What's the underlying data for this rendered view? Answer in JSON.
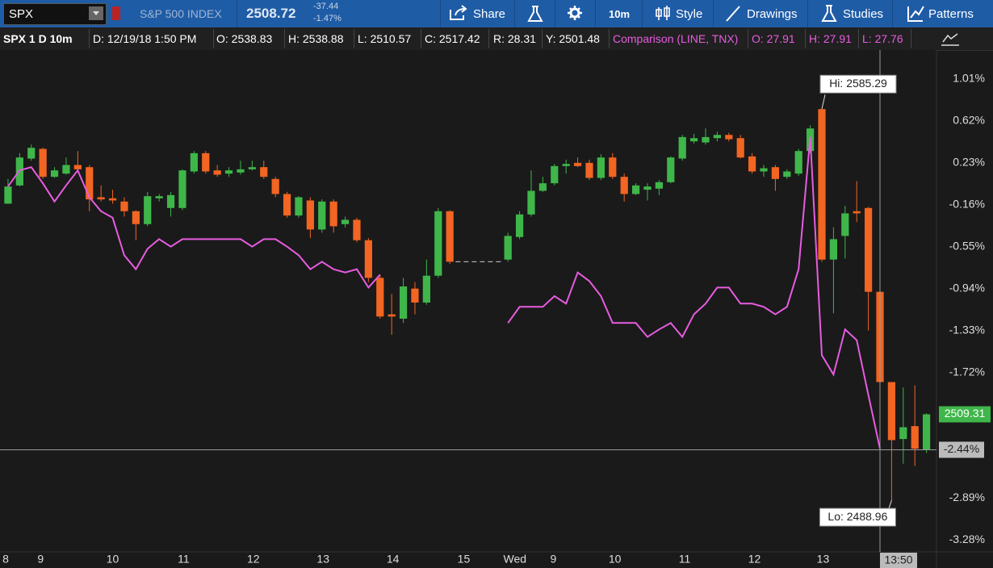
{
  "toolbar": {
    "symbol": "SPX",
    "description": "S&P 500 INDEX",
    "last": "2508.72",
    "change": "-37.44",
    "change_pct": "-1.47%",
    "buttons": [
      "Share",
      "10m",
      "Style",
      "Drawings",
      "Studies",
      "Patterns"
    ]
  },
  "info_bar": {
    "title": "SPX 1 D 10m",
    "items": [
      "D: 12/19/18 1:50 PM",
      "O: 2538.83",
      "H: 2538.88",
      "L: 2510.57",
      "C: 2517.42",
      "R: 28.31",
      "Y: 2501.48"
    ],
    "comparison_items": [
      "O: 27.91",
      "H: 27.91",
      "L: 27.76"
    ]
  },
  "chart_data": {
    "type": "candlestick",
    "up_color": "#3fb64a",
    "down_color": "#f26522",
    "open": [
      -0.15,
      0.02,
      0.27,
      0.36,
      0.1,
      0.13,
      0.21,
      0.19,
      -0.09,
      -0.1,
      -0.13,
      -0.22,
      -0.34,
      -0.1,
      -0.19,
      -0.19,
      0.15,
      0.32,
      0.16,
      0.13,
      0.14,
      0.17,
      0.19,
      0.08,
      -0.06,
      -0.26,
      -0.12,
      -0.39,
      -0.13,
      -0.34,
      -0.3,
      -0.49,
      -0.84,
      -1.18,
      -1.22,
      -0.94,
      -1.07,
      -0.82,
      -0.22,
      null,
      null,
      null,
      null,
      -0.67,
      -0.46,
      -0.25,
      -0.03,
      0.04,
      0.2,
      0.23,
      0.23,
      0.09,
      0.28,
      0.1,
      -0.06,
      -0.02,
      -0.01,
      0.05,
      0.27,
      0.43,
      0.42,
      0.46,
      0.49,
      0.46,
      0.29,
      0.15,
      0.19,
      0.1,
      0.13,
      0.34,
      0.73,
      -0.67,
      -0.45,
      -0.22,
      -0.19,
      -0.97,
      -1.81,
      -2.34,
      -2.22,
      -2.44
    ],
    "high": [
      0.08,
      0.32,
      0.4,
      0.37,
      0.19,
      0.28,
      0.34,
      0.21,
      0.02,
      -0.02,
      -0.09,
      -0.21,
      -0.04,
      -0.06,
      -0.04,
      0.17,
      0.34,
      0.34,
      0.21,
      0.19,
      0.25,
      0.25,
      0.25,
      0.1,
      -0.04,
      -0.08,
      -0.09,
      -0.11,
      -0.11,
      -0.27,
      -0.28,
      -0.47,
      -0.81,
      -0.99,
      -0.84,
      -0.88,
      -0.67,
      -0.19,
      -0.21,
      null,
      null,
      null,
      null,
      -0.42,
      -0.22,
      0.16,
      0.1,
      0.22,
      0.26,
      0.28,
      0.26,
      0.31,
      0.32,
      0.13,
      0.04,
      0.04,
      0.07,
      0.29,
      0.49,
      0.5,
      0.55,
      0.52,
      0.51,
      0.49,
      0.32,
      0.21,
      0.21,
      0.17,
      0.36,
      0.58,
      0.73,
      -0.37,
      -0.17,
      0.06,
      -0.18,
      -0.96,
      -1.81,
      -1.86,
      -1.84,
      -2.1
    ],
    "low": [
      -0.15,
      0.01,
      0.25,
      0.08,
      0.09,
      0.12,
      0.16,
      -0.22,
      -0.13,
      -0.15,
      -0.27,
      -0.49,
      -0.36,
      -0.13,
      -0.27,
      -0.21,
      0.13,
      0.13,
      0.1,
      0.1,
      0.12,
      0.16,
      0.08,
      -0.09,
      -0.28,
      -0.28,
      -0.47,
      -0.42,
      -0.42,
      -0.37,
      -0.51,
      -0.88,
      -1.22,
      -1.37,
      -1.26,
      -1.18,
      -1.09,
      -0.84,
      -0.71,
      null,
      null,
      null,
      null,
      -0.69,
      -0.48,
      -0.27,
      -0.04,
      0.02,
      0.13,
      0.19,
      0.07,
      0.07,
      0.08,
      -0.13,
      -0.07,
      -0.12,
      -0.07,
      0.04,
      0.25,
      0.41,
      0.4,
      0.43,
      0.43,
      0.27,
      0.13,
      0.1,
      -0.03,
      0.08,
      0.11,
      0.32,
      -0.69,
      -1.17,
      -0.66,
      -0.32,
      -1.33,
      -2.43,
      -2.91,
      -2.57,
      -2.59,
      -2.47
    ],
    "close": [
      0.01,
      0.28,
      0.37,
      0.1,
      0.16,
      0.21,
      0.17,
      -0.11,
      -0.11,
      -0.12,
      -0.22,
      -0.34,
      -0.08,
      -0.08,
      -0.07,
      0.16,
      0.32,
      0.15,
      0.12,
      0.16,
      0.17,
      0.19,
      0.1,
      -0.06,
      -0.26,
      -0.09,
      -0.39,
      -0.13,
      -0.36,
      -0.3,
      -0.49,
      -0.84,
      -1.2,
      -1.2,
      -0.92,
      -1.07,
      -0.82,
      -0.22,
      -0.69,
      null,
      null,
      null,
      null,
      -0.45,
      -0.25,
      -0.03,
      0.04,
      0.2,
      0.22,
      0.2,
      0.09,
      0.28,
      0.1,
      -0.06,
      0.02,
      0.01,
      0.05,
      0.28,
      0.47,
      0.46,
      0.47,
      0.49,
      0.45,
      0.28,
      0.15,
      0.18,
      0.08,
      0.15,
      0.34,
      0.55,
      -0.67,
      -0.48,
      -0.24,
      -0.24,
      -0.97,
      -1.81,
      -2.35,
      -2.23,
      -2.43,
      -2.11
    ],
    "series": [
      {
        "name": "Comparison (LINE, TNX)",
        "color": "#e75ce0",
        "values": [
          0.01,
          0.16,
          0.19,
          0.04,
          -0.13,
          0.02,
          0.16,
          -0.09,
          -0.22,
          -0.28,
          -0.63,
          -0.76,
          -0.57,
          -0.48,
          -0.55,
          -0.48,
          -0.48,
          -0.48,
          -0.48,
          -0.48,
          -0.48,
          -0.55,
          -0.48,
          -0.48,
          -0.55,
          -0.63,
          -0.76,
          -0.69,
          -0.76,
          -0.79,
          -0.76,
          -0.93,
          -0.81,
          null,
          null,
          null,
          null,
          null,
          null,
          null,
          null,
          null,
          null,
          -1.26,
          -1.11,
          -1.11,
          -1.11,
          -1.01,
          -1.08,
          -0.79,
          -0.87,
          -1.01,
          -1.26,
          -1.26,
          -1.26,
          -1.39,
          -1.32,
          -1.26,
          -1.39,
          -1.18,
          -1.08,
          -0.93,
          -0.93,
          -1.08,
          -1.08,
          -1.11,
          -1.18,
          -1.11,
          -0.76,
          0.47,
          -1.56,
          -1.74,
          -1.32,
          -1.42,
          -1.93,
          -2.43,
          null,
          null,
          null,
          null
        ]
      }
    ],
    "ylim": [
      -3.39,
      1.28
    ],
    "yticks": [
      {
        "value": 1.01,
        "label": "1.01%"
      },
      {
        "value": 0.62,
        "label": "0.62%"
      },
      {
        "value": 0.23,
        "label": "0.23%"
      },
      {
        "value": -0.16,
        "label": "-0.16%"
      },
      {
        "value": -0.55,
        "label": "-0.55%"
      },
      {
        "value": -0.94,
        "label": "-0.94%"
      },
      {
        "value": -1.33,
        "label": "-1.33%"
      },
      {
        "value": -1.72,
        "label": "-1.72%"
      },
      {
        "value": -2.89,
        "label": "-2.89%"
      },
      {
        "value": -3.28,
        "label": "-3.28%"
      }
    ],
    "xlim": [
      -0.69,
      79.86
    ],
    "xticks": [
      {
        "value": -0.2,
        "label": "8"
      },
      {
        "value": 2.8,
        "label": "9"
      },
      {
        "value": 9,
        "label": "10"
      },
      {
        "value": 15.1,
        "label": "11"
      },
      {
        "value": 21.1,
        "label": "12"
      },
      {
        "value": 27.1,
        "label": "13"
      },
      {
        "value": 33.1,
        "label": "14"
      },
      {
        "value": 39.2,
        "label": "15"
      },
      {
        "value": 43.6,
        "label": "Wed"
      },
      {
        "value": 46.9,
        "label": "9"
      },
      {
        "value": 52.2,
        "label": "10"
      },
      {
        "value": 58.2,
        "label": "11"
      },
      {
        "value": 64.2,
        "label": "12"
      },
      {
        "value": 70.1,
        "label": "13"
      }
    ],
    "hi_label": "Hi: 2585.29",
    "lo_label": "Lo: 2488.96",
    "last_price_label": "2509.31",
    "crosshair": {
      "value": -2.44,
      "label": "-2.44%",
      "time_label": "13:50"
    }
  }
}
